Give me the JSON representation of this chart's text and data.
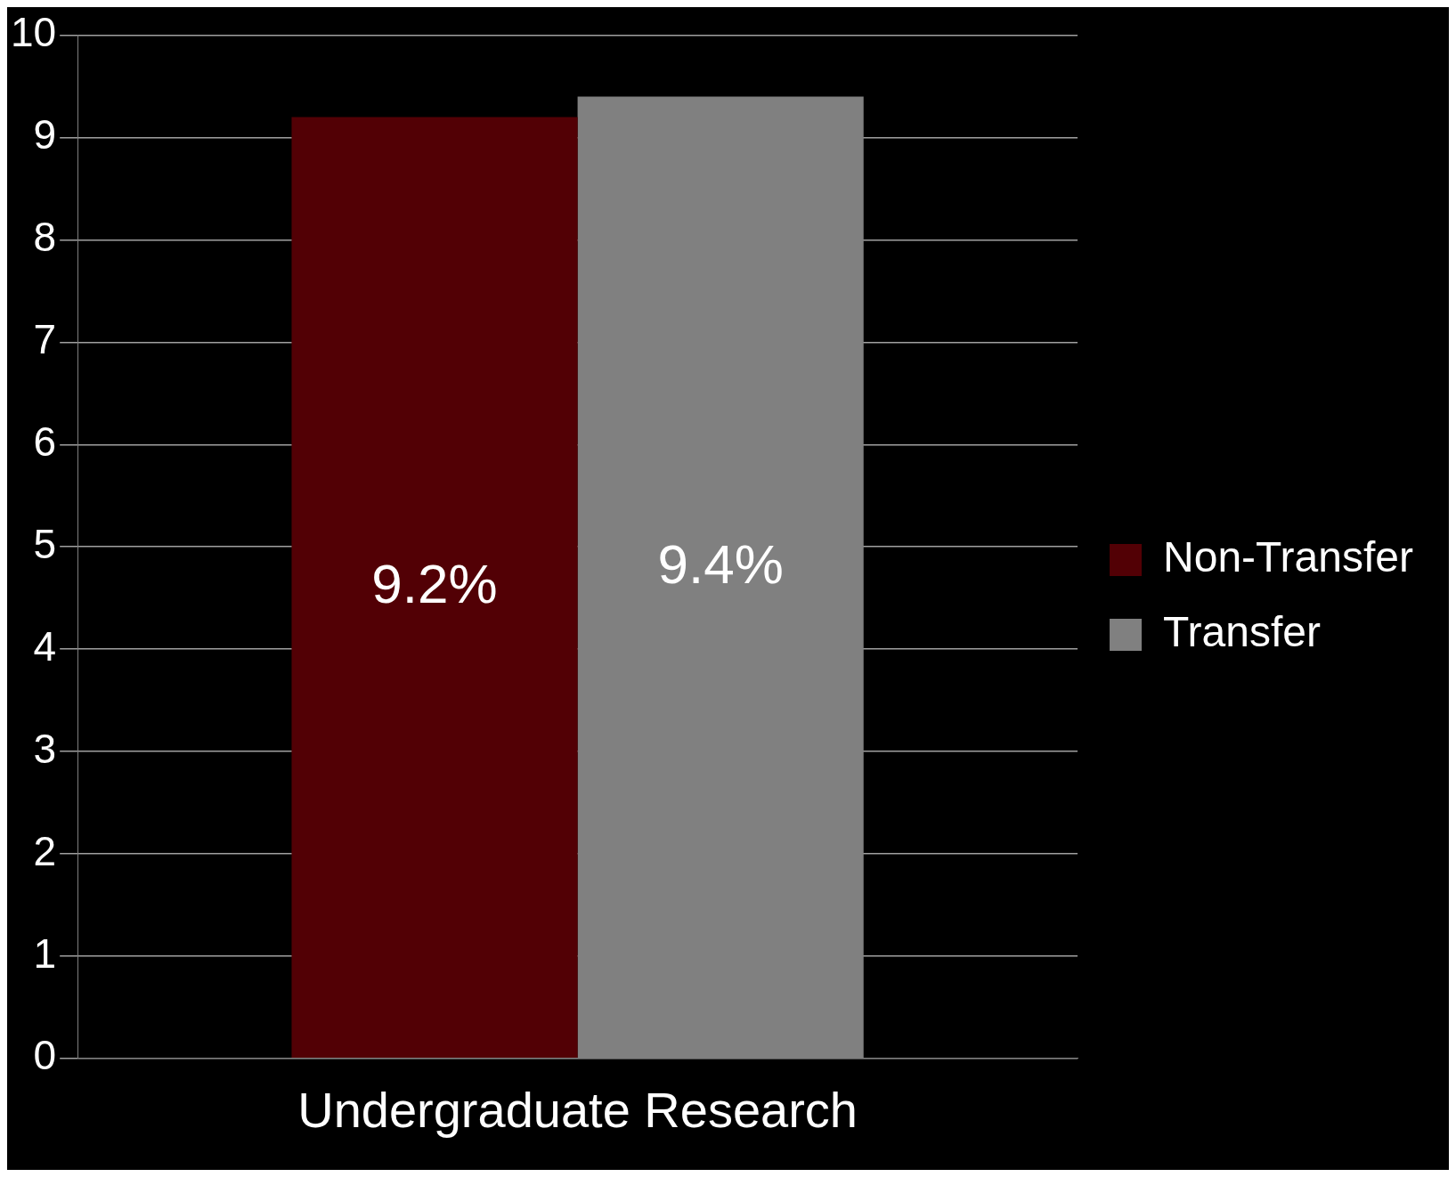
{
  "chart_data": {
    "type": "bar",
    "categories": [
      "Undergraduate Research"
    ],
    "series": [
      {
        "name": "Non-Transfer",
        "color": "#520005",
        "values": [
          9.2
        ],
        "value_labels": [
          "9.2%"
        ]
      },
      {
        "name": "Transfer",
        "color": "#808080",
        "values": [
          9.4
        ],
        "value_labels": [
          "9.4%"
        ]
      }
    ],
    "ylim": [
      0,
      10
    ],
    "yticks": [
      0,
      1,
      2,
      3,
      4,
      5,
      6,
      7,
      8,
      9,
      10
    ],
    "grid": "y",
    "legend": "right"
  }
}
